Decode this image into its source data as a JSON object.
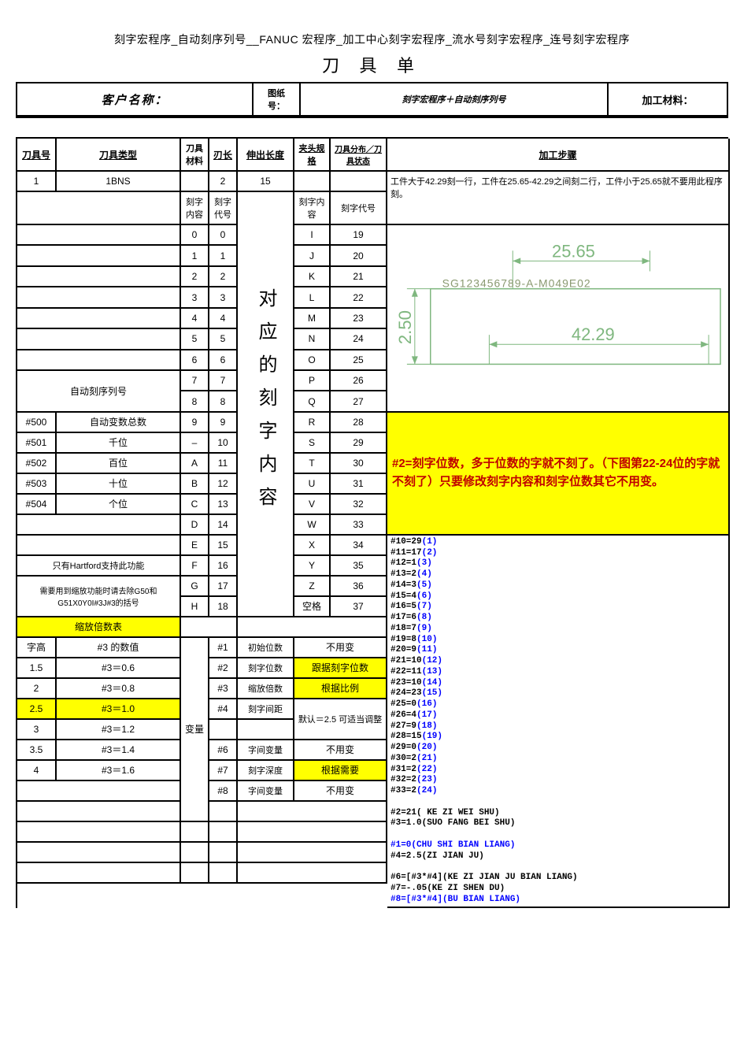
{
  "breadcrumb": "刻字宏程序_自动刻序列号__FANUC 宏程序_加工中心刻字宏程序_流水号刻字宏程序_连号刻字宏程序",
  "title": "刀 具 单",
  "meta": {
    "customer_label": "客户名称：",
    "drawing_no_label": "图纸号：",
    "drawing_no_value": "刻字宏程序＋自动刻序列号",
    "material_label": "加工材料："
  },
  "head": {
    "c0": "刀具号",
    "c1": "刀具类型",
    "c2": "刀具材料",
    "c3": "刃长",
    "c4": "伸出长度",
    "c5": "夹头规格",
    "c6": "刀具分布／刀具状态",
    "c8": "加工步骤"
  },
  "row_tool": {
    "no": "1",
    "type": "1BNS",
    "mat": "",
    "blade": "2",
    "ext": "15",
    "clamp": "",
    "dist": ""
  },
  "step_note": "工件大于42.29刻一行，工件在25.65-42.29之间刻二行，工件小于25.65就不要用此程序刻。",
  "label_block": {
    "a": "刻字内容",
    "b": "刻字代号",
    "c": "刻字内容",
    "d": "刻字代号"
  },
  "vertical_label": "对应的刻字内容",
  "char_rows": [
    {
      "c": "0",
      "n": "0",
      "d": "I",
      "m": "19"
    },
    {
      "c": "1",
      "n": "1",
      "d": "J",
      "m": "20"
    },
    {
      "c": "2",
      "n": "2",
      "d": "K",
      "m": "21"
    },
    {
      "c": "3",
      "n": "3",
      "d": "L",
      "m": "22"
    },
    {
      "c": "4",
      "n": "4",
      "d": "M",
      "m": "23"
    },
    {
      "c": "5",
      "n": "5",
      "d": "N",
      "m": "24"
    },
    {
      "c": "6",
      "n": "6",
      "d": "O",
      "m": "25"
    },
    {
      "c": "7",
      "n": "7",
      "d": "P",
      "m": "26"
    },
    {
      "c": "8",
      "n": "8",
      "d": "Q",
      "m": "27"
    },
    {
      "c": "9",
      "n": "9",
      "d": "R",
      "m": "28"
    },
    {
      "c": "–",
      "n": "10",
      "d": "S",
      "m": "29"
    },
    {
      "c": "A",
      "n": "11",
      "d": "T",
      "m": "30"
    },
    {
      "c": "B",
      "n": "12",
      "d": "U",
      "m": "31"
    },
    {
      "c": "C",
      "n": "13",
      "d": "V",
      "m": "32"
    },
    {
      "c": "D",
      "n": "14",
      "d": "W",
      "m": "33"
    },
    {
      "c": "E",
      "n": "15",
      "d": "X",
      "m": "34"
    },
    {
      "c": "F",
      "n": "16",
      "d": "Y",
      "m": "35"
    },
    {
      "c": "G",
      "n": "17",
      "d": "Z",
      "m": "36"
    },
    {
      "c": "H",
      "n": "18",
      "d": "空格",
      "m": "37"
    }
  ],
  "left_labels": {
    "auto_seq": "自动刻序列号",
    "r500": {
      "a": "#500",
      "b": "自动变数总数"
    },
    "r501": {
      "a": "#501",
      "b": "千位"
    },
    "r502": {
      "a": "#502",
      "b": "百位"
    },
    "r503": {
      "a": "#503",
      "b": "十位"
    },
    "r504": {
      "a": "#504",
      "b": "个位"
    },
    "hartford": "只有Hartford支持此功能",
    "g50": "需要用到缩放功能时请去除G50和G51X0Y0I#3J#3的括号"
  },
  "zoom": {
    "title": "缩放倍数表",
    "h1": "字高",
    "h2": "#3 的数值",
    "rows": [
      {
        "a": "1.5",
        "b": "#3＝0.6"
      },
      {
        "a": "2",
        "b": "#3＝0.8"
      },
      {
        "a": "2.5",
        "b": "#3＝1.0",
        "hl": true
      },
      {
        "a": "3",
        "b": "#3＝1.2"
      },
      {
        "a": "3.5",
        "b": "#3＝1.4"
      },
      {
        "a": "4",
        "b": "#3＝1.6"
      }
    ]
  },
  "vars": {
    "label": "变量",
    "rows": [
      {
        "a": "#1",
        "b": "初始位数",
        "c": "不用变"
      },
      {
        "a": "#2",
        "b": "刻字位数",
        "c": "跟据刻字位数",
        "hl": true
      },
      {
        "a": "#3",
        "b": "缩放倍数",
        "c": "根据比例",
        "hl": true
      },
      {
        "a": "#4",
        "b": "刻字间距",
        "c": "默认＝2.5 可适当调整"
      },
      {
        "a": "",
        "b": "",
        "c": ""
      },
      {
        "a": "#6",
        "b": "字间变量",
        "c": "不用变"
      },
      {
        "a": "#7",
        "b": "刻字深度",
        "c": "根据需要",
        "hl": true
      },
      {
        "a": "#8",
        "b": "字间变量",
        "c": "不用变"
      }
    ]
  },
  "diagram": {
    "w_top": "25.65",
    "w_bottom": "42.29",
    "h_left": "2.50",
    "sample": "SG123456789-A-M049E02"
  },
  "yellow_note": "#2=刻字位数，多于位数的字就不刻了。（下图第22-24位的字就不刻了）只要修改刻字内容和刻字位数其它不用变。",
  "code_lines": [
    "#10=29(1)",
    "#11=17(2)",
    "#12=1(3)",
    "#13=2(4)",
    "#14=3(5)",
    "#15=4(6)",
    "#16=5(7)",
    "#17=6(8)",
    "#18=7(9)",
    "#19=8(10)",
    "#20=9(11)",
    "#21=10(12)",
    "#22=11(13)",
    "#23=10(14)",
    "#24=23(15)",
    "#25=0(16)",
    "#26=4(17)",
    "#27=9(18)",
    "#28=15(19)",
    "#29=0(20)",
    "#30=2(21)",
    "#31=2(22)",
    "#32=2(23)",
    "#33=2(24)"
  ],
  "code_tail": [
    {
      "t": "#2=21( KE ZI WEI SHU)",
      "b": true
    },
    {
      "t": "#3=1.0(SUO FANG BEI SHU)",
      "b": true
    },
    {
      "t": ""
    },
    {
      "t": "#1=0(CHU SHI BIAN LIANG)",
      "b": true,
      "blue": true
    },
    {
      "t": "#4=2.5(ZI JIAN JU)",
      "b": true
    },
    {
      "t": ""
    },
    {
      "t": "#6=[#3*#4](KE ZI JIAN JU BIAN LIANG)",
      "b": true
    },
    {
      "t": "#7=-.05(KE ZI SHEN DU)",
      "b": true
    },
    {
      "t": "#8=[#3*#4](BU BIAN LIANG)",
      "b": true,
      "blue": true
    }
  ]
}
